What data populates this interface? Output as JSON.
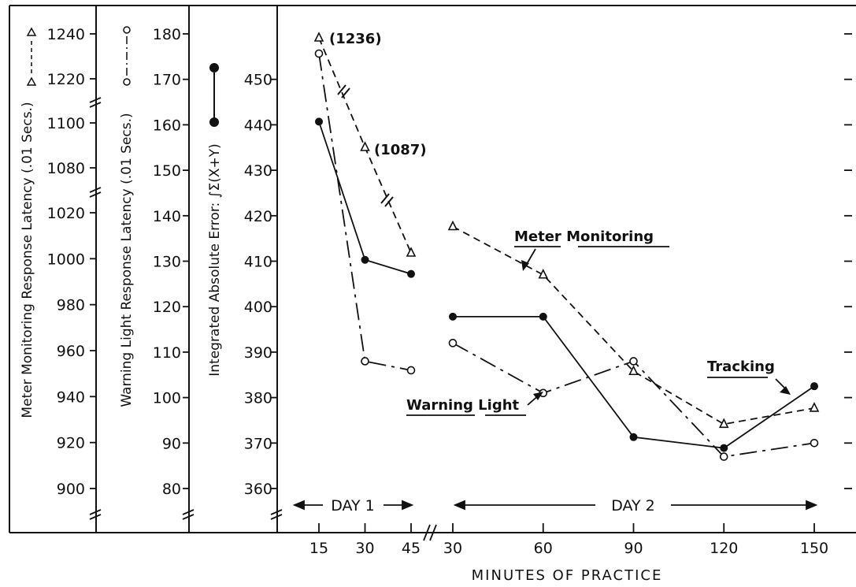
{
  "chart_data": {
    "type": "line",
    "x_axis": {
      "label": "MINUTES OF PRACTICE",
      "tick_labels": [
        "15",
        "30",
        "45",
        "30",
        "60",
        "90",
        "120",
        "150"
      ],
      "days": [
        {
          "label": "DAY 1",
          "minutes": [
            15,
            30,
            45
          ]
        },
        {
          "label": "DAY 2",
          "minutes": [
            30,
            60,
            90,
            120,
            150
          ]
        }
      ],
      "day1_label": "DAY 1",
      "day2_label": "DAY 2"
    },
    "y_axes": [
      {
        "id": "meter",
        "label": "Meter Monitoring Response Latency (.01 Secs.)",
        "ticks": [
          "900",
          "920",
          "940",
          "960",
          "980",
          "1000",
          "1020",
          "1080",
          "1100",
          "1220",
          "1240"
        ],
        "break_note": "axis breaks between 1020/1080 and 1100/1220"
      },
      {
        "id": "warning",
        "label": "Warning Light Response Latency (.01 Secs.)",
        "ticks": [
          "80",
          "90",
          "100",
          "110",
          "120",
          "130",
          "140",
          "150",
          "160",
          "170",
          "180"
        ]
      },
      {
        "id": "tracking",
        "label": "Integrated Absolute Error: ∫Σ(X+Y)",
        "ticks": [
          "360",
          "370",
          "380",
          "390",
          "400",
          "410",
          "420",
          "430",
          "440",
          "450"
        ]
      }
    ],
    "series": [
      {
        "name": "Meter Monitoring",
        "axis": "meter",
        "line_style": "dashed",
        "marker": "open-triangle",
        "day1": [
          1236,
          1087,
          1005
        ],
        "day2": [
          1014,
          993,
          951,
          928,
          935
        ],
        "annotations": [
          "(1236)",
          "(1087)"
        ]
      },
      {
        "name": "Warning Light",
        "axis": "warning",
        "line_style": "dash-dot",
        "marker": "open-circle",
        "day1": [
          175,
          108,
          106
        ],
        "day2": [
          112,
          101,
          108,
          87,
          90
        ]
      },
      {
        "name": "Tracking",
        "axis": "tracking",
        "line_style": "solid",
        "marker": "filled-circle",
        "day1": [
          440.7,
          410.3,
          407.2
        ],
        "day2": [
          397.8,
          397.8,
          371.3,
          368.9,
          382.5
        ]
      }
    ],
    "labels": {
      "meter_monitoring": "Meter  Monitoring",
      "warning_light": "Warning  Light",
      "tracking": "Tracking",
      "ann_1236": "(1236)",
      "ann_1087": "(1087)"
    }
  }
}
